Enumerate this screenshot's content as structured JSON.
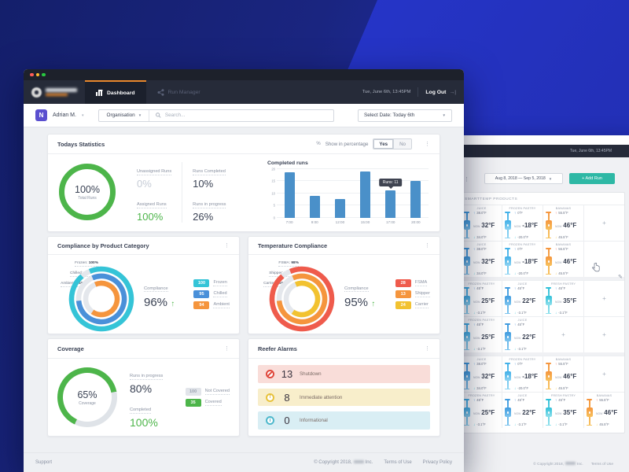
{
  "bg_window": {
    "time": "Tue, June 6th, 13:45PM",
    "toolbar": {
      "date_range": "Aug 8, 2018 — Sep 5, 2018",
      "add_run": "+ Add Run",
      "add_run_color": "#2eb8a5"
    },
    "products_header": "SMARTTEMP PRODUCTS",
    "now_label": "NOW",
    "grid_rows": [
      [
        {
          "product": "JUICE",
          "high": "38.0°F",
          "now": "32°F",
          "low": "34.0°F",
          "theme": "blue"
        },
        {
          "product": "FROZEN PASTRY",
          "high": "0°F",
          "now": "-18°F",
          "low": "-20.0°F",
          "theme": "lightblue"
        },
        {
          "product": "BANANAS",
          "high": "55.5°F",
          "now": "46°F",
          "low": "45.5°F",
          "theme": "orange"
        },
        {
          "add": true
        }
      ],
      [
        {
          "product": "JUICE",
          "high": "38.0°F",
          "now": "32°F",
          "low": "34.0°F",
          "theme": "blue"
        },
        {
          "product": "FROZEN PASTRY",
          "high": "0°F",
          "now": "-18°F",
          "low": "-20.0°F",
          "theme": "lightblue"
        },
        {
          "product": "BANANAS",
          "high": "55.5°F",
          "now": "46°F",
          "low": "45.5°F",
          "theme": "orange"
        },
        {
          "empty": true
        }
      ],
      [
        {
          "product": "FROZEN PASTRY",
          "high": "45°F",
          "now": "25°F",
          "low": "-3.1°F",
          "theme": "lightblue"
        },
        {
          "product": "JUICE",
          "high": "45°F",
          "now": "22°F",
          "low": "-3.1°F",
          "theme": "blue"
        },
        {
          "product": "FRESH PASTRY",
          "high": "45°F",
          "now": "35°F",
          "low": "-3.1°F",
          "theme": "teal"
        },
        {
          "add": true
        }
      ],
      [
        {
          "product": "FROZEN PASTRY",
          "high": "45°F",
          "now": "25°F",
          "low": "-3.1°F",
          "theme": "lightblue"
        },
        {
          "product": "JUICE",
          "high": "45°F",
          "now": "22°F",
          "low": "-3.1°F",
          "theme": "blue"
        },
        {
          "add": true
        },
        {
          "add": true
        }
      ],
      [
        {
          "product": "JUICE",
          "high": "38.0°F",
          "now": "32°F",
          "low": "34.0°F",
          "theme": "blue"
        },
        {
          "product": "FROZEN PASTRY",
          "high": "0°F",
          "now": "-18°F",
          "low": "-20.0°F",
          "theme": "lightblue"
        },
        {
          "product": "BANANAS",
          "high": "55.5°F",
          "now": "46°F",
          "low": "45.5°F",
          "theme": "orange"
        },
        {
          "add": true
        }
      ],
      [
        {
          "product": "FROZEN PASTRY",
          "high": "45°F",
          "now": "25°F",
          "low": "-3.1°F",
          "theme": "lightblue"
        },
        {
          "product": "JUICE",
          "high": "45°F",
          "now": "22°F",
          "low": "-3.1°F",
          "theme": "blue"
        },
        {
          "product": "FRESH PASTRY",
          "high": "45°F",
          "now": "35°F",
          "low": "-3.1°F",
          "theme": "teal"
        },
        {
          "product": "BANANAS",
          "high": "55.5°F",
          "now": "46°F",
          "low": "45.5°F",
          "theme": "orange"
        }
      ]
    ],
    "themes": {
      "blue": {
        "body": "#3f9bdf",
        "line": "#7cc4ee",
        "up": "#4a90d9",
        "down": "#35c4d7"
      },
      "lightblue": {
        "body": "#41b0e8",
        "line": "#8fd4f2",
        "up": "#4a90d9",
        "down": "#35c4d7"
      },
      "teal": {
        "body": "#2fc0d8",
        "line": "#8fe0ec",
        "up": "#4a90d9",
        "down": "#35c4d7"
      },
      "orange": {
        "body": "#f5953d",
        "line": "#f7c25e",
        "up": "#ef5b4c",
        "down": "#f2c230"
      }
    },
    "footer": {
      "copyright": "© Copyright 2018,",
      "company_suffix": "Inc.",
      "terms": "Terms of Use"
    }
  },
  "main_window": {
    "navbar": {
      "tabs": [
        {
          "label": "Dashboard"
        },
        {
          "label": "Run Manager"
        }
      ],
      "time": "Tue, June 6th, 13:45PM",
      "logout": "Log Out",
      "logout_arrow": "→|"
    },
    "userbar": {
      "user": "Adrian M.",
      "avatar_initial": "N",
      "org": "Organisation",
      "search_placeholder": "Search...",
      "date_select": "Select Date: Today 6th"
    },
    "todays_statistics": {
      "title": "Todays Statistics",
      "toggle_icon": "%",
      "toggle_label": "Show in percentage",
      "yes": "Yes",
      "no": "No",
      "donut": {
        "value": "100%",
        "label": "Total Runs",
        "color": "#4db54a"
      },
      "stat_columns": [
        [
          {
            "label": "Unassigned Runs",
            "value": "0%",
            "tone": "muted"
          },
          {
            "label": "Assigned Runs",
            "value": "100%",
            "tone": "green"
          }
        ],
        [
          {
            "label": "Runs Completed",
            "value": "10%",
            "tone": "dark"
          },
          {
            "label": "Runs in progress",
            "value": "26%",
            "tone": "dark"
          }
        ]
      ],
      "chart_data": {
        "type": "bar",
        "title": "Completed runs",
        "categories": [
          "7:00",
          "9:00",
          "12:00",
          "15:00",
          "17:00",
          "20:00"
        ],
        "values": [
          18.5,
          9,
          7.5,
          19,
          11,
          15
        ],
        "ylim": [
          0,
          20
        ],
        "yticks": [
          0,
          5,
          10,
          15,
          20
        ],
        "bar_color": "#4a90c9",
        "tooltip": {
          "index": 4,
          "text": "Runs: 11"
        }
      }
    },
    "compliance_category": {
      "title": "Compliance by Product Category",
      "rings": [
        {
          "name": "Frozen",
          "label": "Frozen: ",
          "pct": "100%",
          "value": 100,
          "color": "#35c4d7"
        },
        {
          "name": "Chilled",
          "label": "Chilled: ",
          "pct": "95%",
          "value": 95,
          "color": "#4a90d9"
        },
        {
          "name": "Ambient",
          "label": "Ambient: ",
          "pct": "94%",
          "value": 94,
          "color": "#f5953d"
        }
      ],
      "center": {
        "label": "Compliance",
        "value": "96%",
        "trend": "↑"
      },
      "legend": [
        {
          "badge": "100",
          "label": "Frozen",
          "color": "#35c4d7"
        },
        {
          "badge": "95",
          "label": "Chilled",
          "color": "#4a90d9"
        },
        {
          "badge": "94",
          "label": "Ambient",
          "color": "#f5953d"
        }
      ]
    },
    "temperature_compliance": {
      "title": "Temperature Compliance",
      "rings": [
        {
          "name": "FSMA",
          "label": "FSMA: ",
          "pct": "98%",
          "value": 98,
          "color": "#ef5b4c"
        },
        {
          "name": "Shipper",
          "label": "Shipper: ",
          "pct": "96%",
          "value": 96,
          "color": "#f5953d"
        },
        {
          "name": "Carrier",
          "label": "Carrier: ",
          "pct": "95%",
          "value": 95,
          "color": "#f2c230"
        }
      ],
      "center": {
        "label": "Compliance",
        "value": "95%",
        "trend": "↑"
      },
      "legend": [
        {
          "badge": "28",
          "label": "FSMA",
          "color": "#ef5b4c"
        },
        {
          "badge": "13",
          "label": "Shipper",
          "color": "#f5953d"
        },
        {
          "badge": "24",
          "label": "Carrier",
          "color": "#f2c230"
        }
      ]
    },
    "coverage": {
      "title": "Coverage",
      "donut": {
        "value": "65%",
        "label": "Coverage",
        "percent": 65,
        "color": "#4db54a",
        "rest_color": "#dfe3e8"
      },
      "stats": [
        {
          "label": "Runs in progress",
          "value": "80%",
          "tone": "dark"
        },
        {
          "label": "Completed",
          "value": "100%",
          "tone": "green"
        }
      ],
      "legend": [
        {
          "badge": "100",
          "label": "Not Covered",
          "gray": true
        },
        {
          "badge": "35",
          "label": "Covered",
          "color": "#4db54a"
        }
      ]
    },
    "reefer_alarms": {
      "title": "Reefer Alarms",
      "alarms": [
        {
          "icon": "ban-icon",
          "count": "13",
          "label": "Shutdown",
          "severity": "critical"
        },
        {
          "icon": "warning-icon",
          "count": "8",
          "label": "Immediate attention",
          "severity": "warning"
        },
        {
          "icon": "info-icon",
          "count": "0",
          "label": "Informational",
          "severity": "info"
        }
      ]
    },
    "footer": {
      "support": "Support",
      "copyright": "© Copyright 2018,",
      "company_suffix": "Inc.",
      "terms": "Terms of Use",
      "privacy": "Privacy Policy"
    }
  }
}
